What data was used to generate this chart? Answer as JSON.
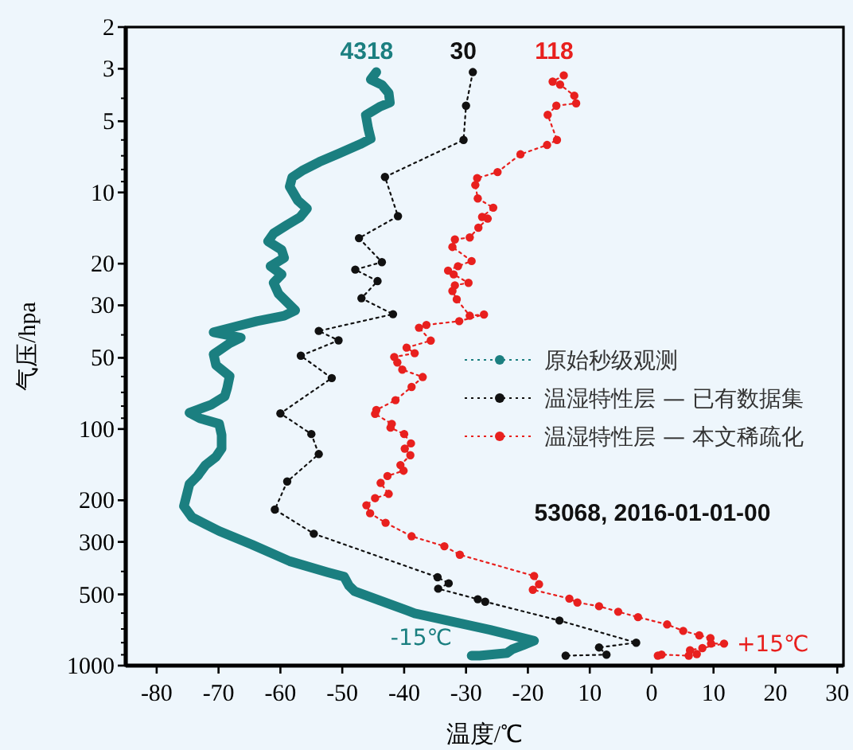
{
  "chart_data": {
    "type": "line",
    "xlabel": "温度/℃",
    "ylabel": "气压/hpa",
    "log": "y",
    "legend": "right",
    "xlim": [
      -85,
      31
    ],
    "ylim": [
      1000,
      2
    ],
    "xticks": [
      -80,
      -70,
      -60,
      -50,
      -40,
      -30,
      -20,
      {
        "value": -10,
        "label": "10"
      },
      0,
      10,
      20,
      30
    ],
    "yticks": [
      2,
      3,
      5,
      10,
      20,
      30,
      50,
      100,
      200,
      300,
      500,
      1000
    ],
    "annotations": [
      "4318",
      "30",
      "118",
      "-15℃",
      {
        "text": "+15℃",
        "x": 11.7,
        "y": 807
      },
      "53068, 2016-01-01-00"
    ],
    "series": [
      {
        "name": "原始秒级观测",
        "color": "#1b7f80",
        "marker": "none",
        "line_style": "solid",
        "x": [
          -44.5,
          -45.4,
          -43.6,
          -42.5,
          -42.3,
          -44.0,
          -46.2,
          -45.8,
          -45.4,
          -47.1,
          -50.6,
          -53.7,
          -56.3,
          -58.1,
          -58.5,
          -57.2,
          -55.7,
          -56.8,
          -58.9,
          -61.1,
          -62.0,
          -59.8,
          -59.4,
          -61.6,
          -59.8,
          -61.1,
          -60.3,
          -57.6,
          -59.4,
          -63.8,
          -67.3,
          -70.8,
          -66.4,
          -68.2,
          -70.8,
          -70.4,
          -68.2,
          -68.6,
          -69.0,
          -71.2,
          -74.7,
          -73.0,
          -69.9,
          -69.5,
          -69.5,
          -70.4,
          -72.1,
          -73.4,
          -74.7,
          -75.6,
          -74.3,
          -69.9,
          -64.6,
          -58.5,
          -52.4,
          -49.7,
          -48.9,
          -48.0,
          -38.3,
          -26.1,
          -19.0,
          -20.8,
          -22.5,
          -23.4,
          -27.8,
          -29.1
        ],
        "values": [
          3.1,
          3.33,
          3.51,
          3.8,
          4.17,
          4.35,
          4.71,
          5.38,
          5.93,
          6.25,
          6.85,
          7.43,
          8.04,
          8.63,
          9.45,
          10.8,
          11.7,
          12.7,
          13.7,
          14.9,
          16.1,
          17.5,
          18.9,
          20.5,
          22.2,
          24.1,
          26.8,
          31.5,
          33.2,
          35,
          36.9,
          39,
          41.1,
          43.4,
          48.3,
          53.7,
          59.8,
          67.1,
          72.8,
          78.9,
          85.4,
          90.2,
          95.1,
          106,
          121,
          131,
          142,
          158,
          171,
          212,
          236,
          270,
          308,
          362,
          403,
          421,
          460,
          485,
          601,
          706,
          785,
          820,
          852,
          885,
          908,
          908
        ]
      },
      {
        "name": "温湿特性层 — 已有数据集",
        "color": "#111111",
        "marker": "circle",
        "line_style": "dotted",
        "x": [
          -28.9,
          -30.0,
          -30.4,
          -43.1,
          -41.0,
          -47.3,
          -43.6,
          -47.9,
          -44.3,
          -46.9,
          -41.8,
          -53.8,
          -50.6,
          -56.7,
          -51.7,
          -60.0,
          -55.0,
          -53.8,
          -58.9,
          -60.9,
          -54.6,
          -34.6,
          -32.8,
          -34.5,
          -28.1,
          -26.9,
          -14.9,
          -2.5,
          -8.5,
          -7.3,
          -13.9
        ],
        "values": [
          3.1,
          4.3,
          6.0,
          8.6,
          12.6,
          15.6,
          19.7,
          21.2,
          23.7,
          28,
          32.7,
          38.5,
          42.2,
          49,
          60.9,
          85.9,
          105,
          127.6,
          166.7,
          219,
          277,
          423,
          449,
          473,
          524,
          537,
          645,
          800,
          838,
          899,
          908
        ]
      },
      {
        "name": "温湿特性层 — 本文稀疏化",
        "color": "#e8201e",
        "marker": "circle",
        "line_style": "dotted",
        "x": [
          -14.2,
          -16.0,
          -14.8,
          -12.5,
          -12.2,
          -15.4,
          -16.8,
          -15.3,
          -16.9,
          -21.2,
          -24.9,
          -28.2,
          -28.5,
          -28.1,
          -25.6,
          -27.4,
          -26.5,
          -28.0,
          -29.4,
          -31.8,
          -32.2,
          -29.1,
          -31.3,
          -32.9,
          -32.0,
          -29.6,
          -31.8,
          -32.2,
          -31.5,
          -29.4,
          -27.1,
          -31.1,
          -36.4,
          -37.6,
          -35.7,
          -39.6,
          -38.3,
          -41.6,
          -41.1,
          -40.3,
          -37.0,
          -38.8,
          -41.4,
          -44.5,
          -44.7,
          -42.0,
          -42.2,
          -40.0,
          -38.9,
          -39.9,
          -39.0,
          -40.6,
          -40.1,
          -42.7,
          -43.8,
          -42.5,
          -44.7,
          -46.1,
          -45.5,
          -43.0,
          -38.8,
          -33.5,
          -31.0,
          -19.0,
          -18.2,
          -19.2,
          -13.3,
          -12.0,
          -8.5,
          -5.4,
          -2.2,
          2.5,
          5.1,
          7.7,
          9.5,
          9.6,
          11.7,
          8.2,
          6.2,
          7.3,
          6.0,
          1.6,
          1.0
        ],
        "values": [
          3.2,
          3.4,
          3.5,
          3.9,
          4.2,
          4.3,
          4.7,
          6.0,
          6.3,
          6.9,
          8.2,
          8.7,
          9.3,
          10.6,
          11.6,
          12.7,
          12.9,
          14.1,
          15.5,
          15.8,
          17,
          19.5,
          20.5,
          21.4,
          22.2,
          24.1,
          24.7,
          26.1,
          28.3,
          33.2,
          32.8,
          35,
          36.3,
          37.3,
          42.3,
          45.3,
          47.8,
          49.6,
          52.3,
          56.1,
          60.3,
          66.4,
          75.5,
          83.1,
          86.3,
          95.1,
          98.7,
          105,
          115,
          121,
          129,
          142,
          150,
          158,
          169,
          188,
          196,
          210,
          227,
          249,
          284,
          313,
          340,
          418,
          453,
          478,
          521,
          541,
          561,
          592,
          624,
          670,
          713,
          745,
          765,
          807,
          807,
          843,
          861,
          894,
          908,
          899,
          908
        ]
      }
    ]
  }
}
